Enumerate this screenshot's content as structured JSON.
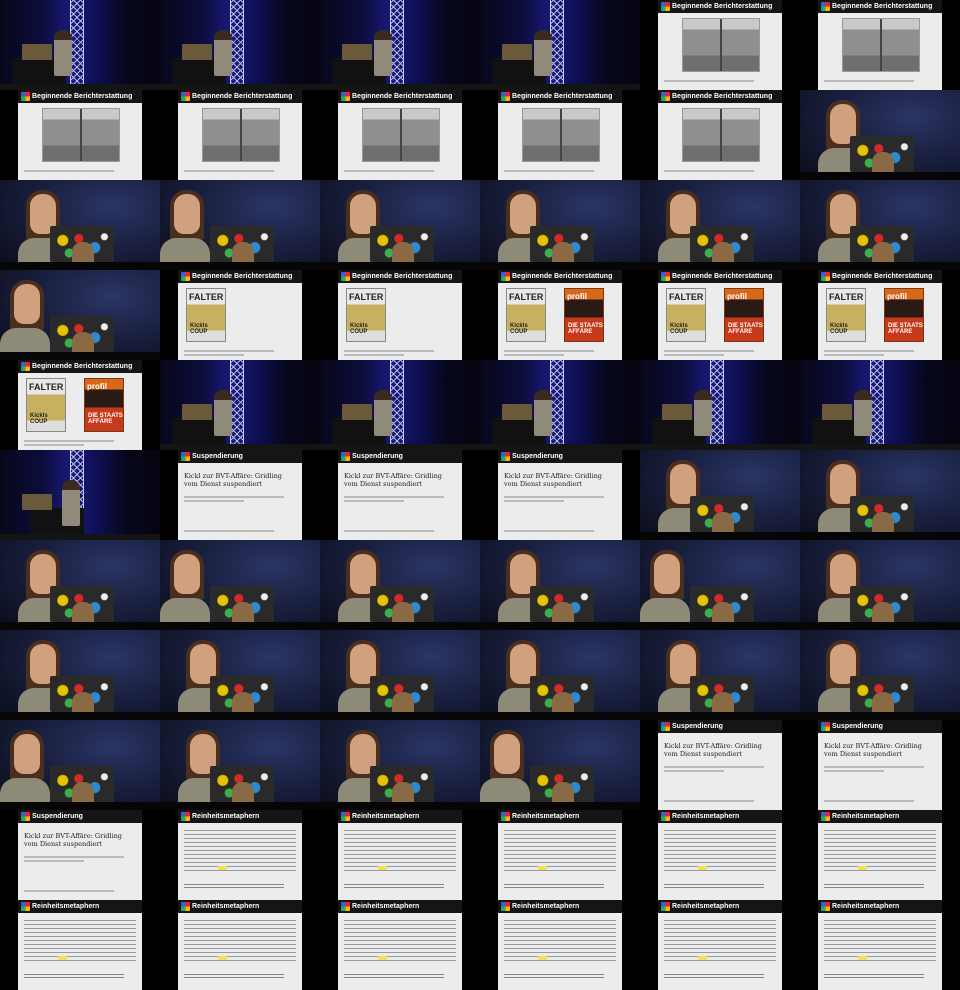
{
  "slides": {
    "berichterstattung": "Beginnende Berichterstattung",
    "suspendierung": "Suspendierung",
    "reinheit": "Reinheitsmetaphern",
    "article_title": "Kickl zur BVT-Affäre: Gridling vom Dienst suspendiert",
    "falter": "FALTER",
    "falter_sub": "Kickls COUP",
    "profil": "profil",
    "profil_sub": "DIE STAATS AFFÄRE"
  },
  "tiles": [
    "stage",
    "stage",
    "stage",
    "stage",
    "b1",
    "b1",
    "b1",
    "b1",
    "b1",
    "b1",
    "b1",
    "close",
    "close",
    "closeL",
    "close",
    "close",
    "close",
    "close",
    "closeL",
    "m1",
    "m1",
    "m2",
    "m2",
    "m2",
    "m2",
    "stage",
    "stage",
    "stage",
    "stage",
    "stage",
    "stageA",
    "s",
    "s",
    "s",
    "close",
    "close",
    "close",
    "closeL",
    "close",
    "close",
    "closeL",
    "close",
    "close",
    "close",
    "close",
    "close",
    "close",
    "close",
    "closeL",
    "close",
    "close",
    "closeL",
    "s",
    "s",
    "s",
    "r",
    "r",
    "r",
    "r",
    "r",
    "r",
    "r",
    "r",
    "r",
    "r",
    "r"
  ]
}
